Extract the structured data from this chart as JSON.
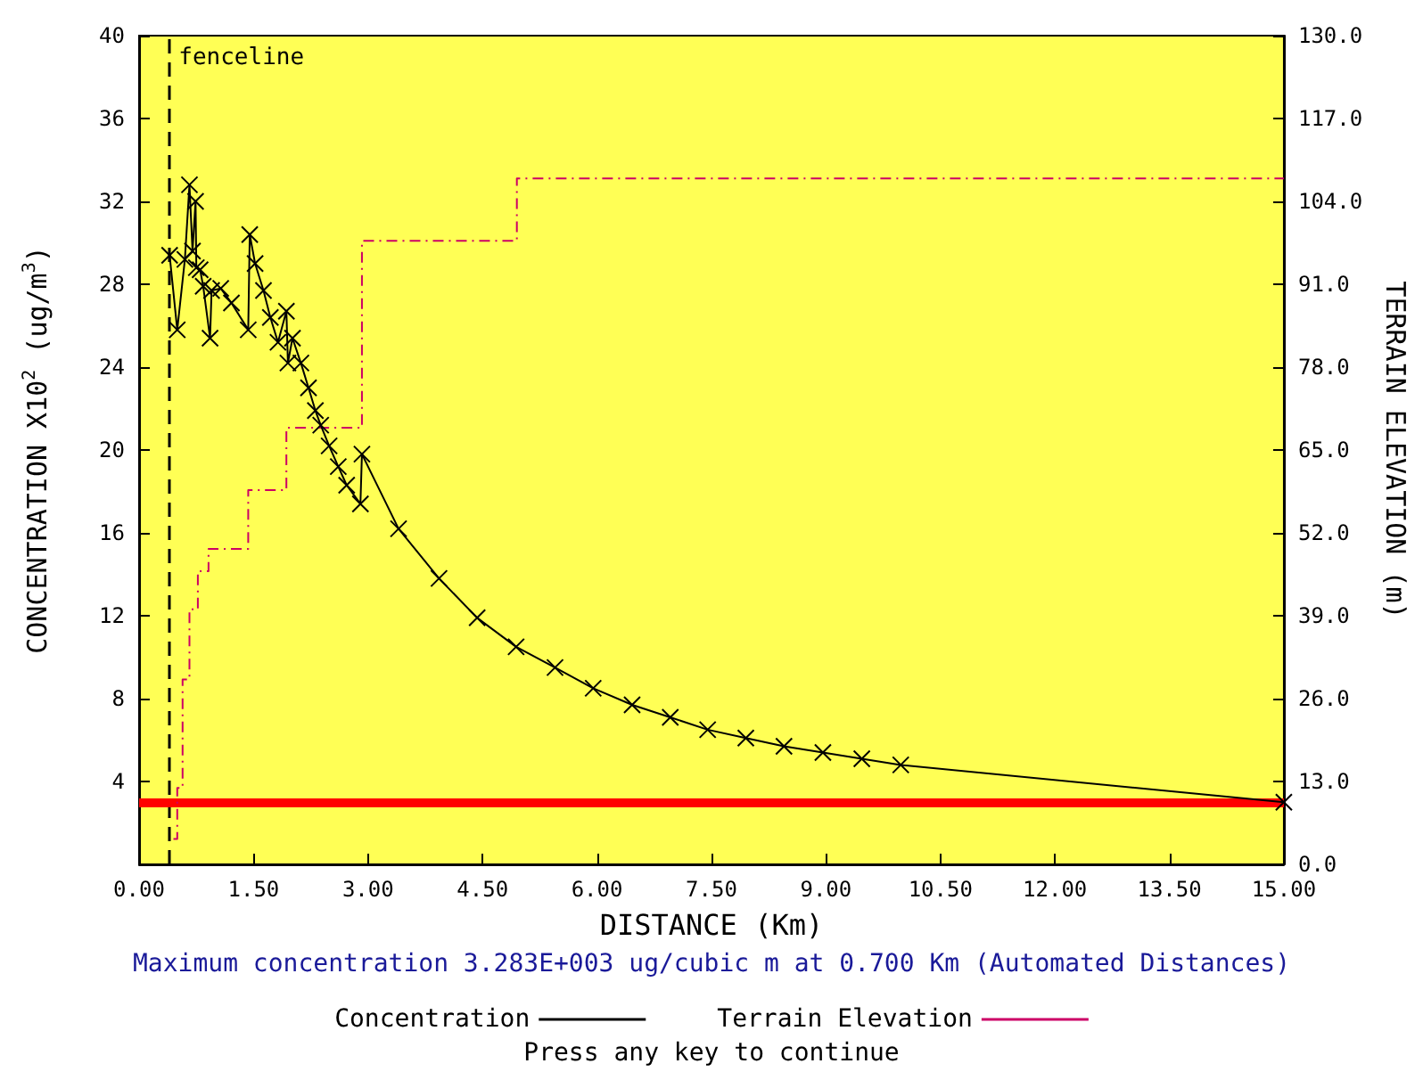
{
  "chart_data": {
    "type": "line",
    "xlabel": "DISTANCE (Km)",
    "ylabel": "CONCENTRATION X10$^{2}$ (ug/m$^{3}$)",
    "y2label": "TERRAIN ELEVATION (m)",
    "annotations": [
      "Maximum concentration 3.283E+003 ug/cubic m at 0.700 Km (Automated Distances)",
      "Press any key to continue"
    ],
    "xlim": [
      0,
      15
    ],
    "ylim": [
      0,
      40
    ],
    "y2lim": [
      0,
      130
    ],
    "xticks": [
      {
        "value": 0,
        "label": "0.00"
      },
      {
        "value": 1.5,
        "label": "1.50"
      },
      {
        "value": 3,
        "label": "3.00"
      },
      {
        "value": 4.5,
        "label": "4.50"
      },
      {
        "value": 6,
        "label": "6.00"
      },
      {
        "value": 7.5,
        "label": "7.50"
      },
      {
        "value": 9,
        "label": "9.00"
      },
      {
        "value": 10.5,
        "label": "10.50"
      },
      {
        "value": 12,
        "label": "12.00"
      },
      {
        "value": 13.5,
        "label": "13.50"
      },
      {
        "value": 15,
        "label": "15.00"
      }
    ],
    "yticks": [
      {
        "value": 0,
        "label": null
      },
      4,
      8,
      12,
      16,
      20,
      24,
      28,
      32,
      36,
      40
    ],
    "y2ticks": [
      {
        "value": 0,
        "label": "0.0"
      },
      {
        "value": 13,
        "label": "13.0"
      },
      {
        "value": 26,
        "label": "26.0"
      },
      {
        "value": 39,
        "label": "39.0"
      },
      {
        "value": 52,
        "label": "52.0"
      },
      {
        "value": 65,
        "label": "65.0"
      },
      {
        "value": 78,
        "label": "78.0"
      },
      {
        "value": 91,
        "label": "91.0"
      },
      {
        "value": 104,
        "label": "104.0"
      },
      {
        "value": 117,
        "label": "117.0"
      },
      {
        "value": 130,
        "label": "130.0"
      }
    ],
    "grid": false,
    "legend": "bottom",
    "series": [
      {
        "name": "Concentration",
        "color": "#000000",
        "marker": "cross",
        "line_style": "solid",
        "x": [
          0.4,
          0.5,
          0.6,
          0.66,
          0.7,
          0.74,
          0.75,
          0.8,
          0.84,
          0.93,
          0.95,
          1.07,
          1.21,
          1.43,
          1.45,
          1.52,
          1.63,
          1.72,
          1.82,
          1.93,
          1.95,
          2.01,
          2.12,
          2.22,
          2.31,
          2.38,
          2.49,
          2.61,
          2.72,
          2.9,
          2.92,
          3.4,
          3.93,
          4.43,
          4.94,
          5.45,
          5.95,
          6.46,
          6.96,
          7.45,
          7.95,
          8.45,
          8.96,
          9.47,
          9.98,
          15
        ],
        "values": [
          29.4,
          25.8,
          29.2,
          32.8,
          29.6,
          32,
          28.8,
          28.7,
          27.9,
          25.4,
          27.7,
          27.8,
          27.1,
          25.8,
          30.4,
          29,
          27.7,
          26.4,
          25.2,
          26.7,
          24.2,
          25.4,
          24.2,
          23,
          21.9,
          21.2,
          20.2,
          19.2,
          18.3,
          17.4,
          19.8,
          16.2,
          13.8,
          11.9,
          10.5,
          9.5,
          8.5,
          7.7,
          7.1,
          6.5,
          6.1,
          5.7,
          5.4,
          5.1,
          4.8,
          3
        ]
      },
      {
        "name": "Terrain Elevation",
        "type": "step",
        "axis": "y2",
        "color": "#cc0066",
        "marker": "none",
        "line_style": "dashed",
        "x": [
          0.45,
          0.5,
          0.57,
          0.66,
          0.77,
          0.91,
          1.43,
          1.93,
          2.92,
          4.95,
          15
        ],
        "values": [
          4,
          12,
          29,
          40,
          46,
          49.5,
          58.7,
          68.5,
          97.8,
          107.6,
          107.6
        ]
      }
    ],
    "ref_lines": [
      {
        "axis": "x",
        "value": 0.4,
        "label": "fenceline",
        "color": "#000000",
        "line_style": "dashed"
      },
      {
        "axis": "y",
        "value": 3,
        "color": "#ff0000",
        "line_style": "solid"
      }
    ]
  }
}
